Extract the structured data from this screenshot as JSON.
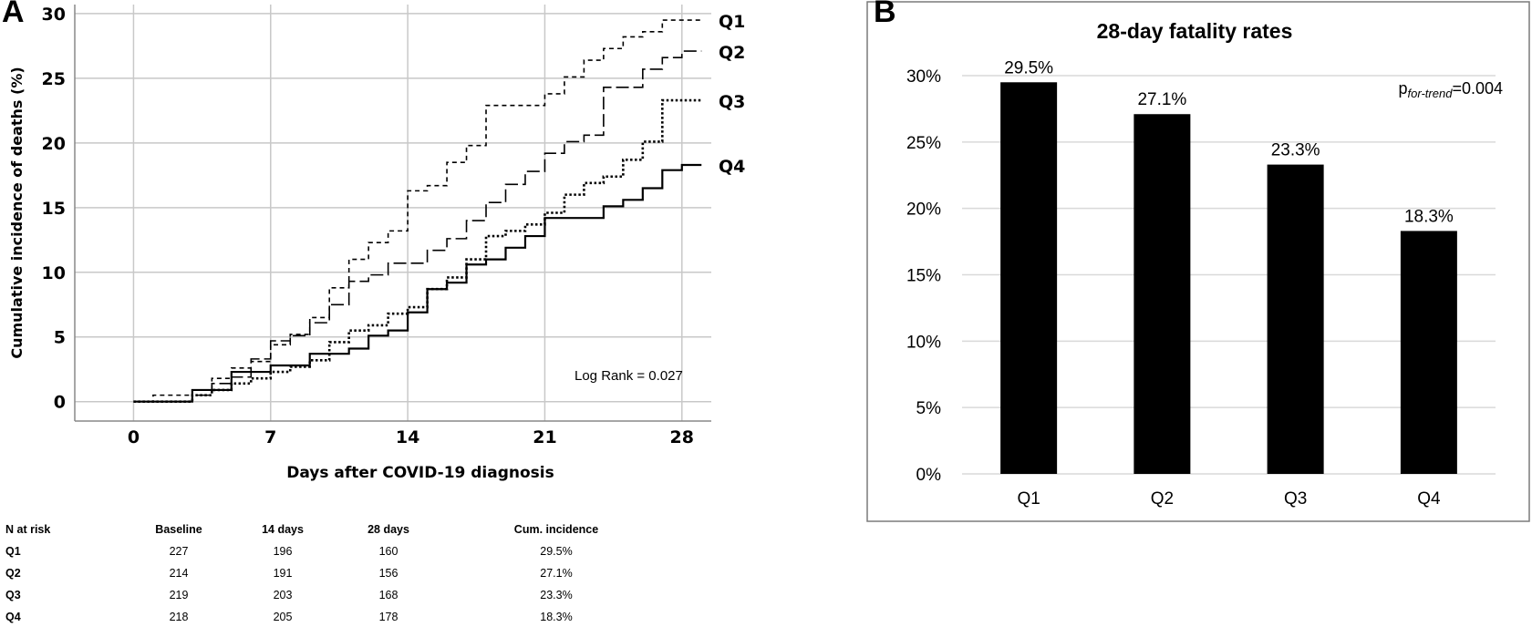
{
  "panels": {
    "a": {
      "letter": "A"
    },
    "b": {
      "letter": "B"
    }
  },
  "chart_data": [
    {
      "type": "line",
      "step": true,
      "xlabel": "Days after COVID-19 diagnosis",
      "ylabel": "Cumulative incidence of deaths (%)",
      "xlim": [
        -3,
        29.5
      ],
      "ylim": [
        -1.5,
        30.7
      ],
      "xticks": [
        0,
        7,
        14,
        21,
        28
      ],
      "yticks": [
        0,
        5,
        10,
        15,
        20,
        25,
        30
      ],
      "grid": true,
      "annotation": "Log Rank = 0.027",
      "series": [
        {
          "name": "Q1",
          "dash": "short-dash",
          "x": [
            0,
            1,
            3,
            4,
            5,
            6,
            7,
            8,
            9,
            10,
            11,
            12,
            13,
            14,
            15,
            16,
            17,
            18,
            19,
            20,
            21,
            22,
            23,
            24,
            25,
            26,
            27,
            28,
            29
          ],
          "y": [
            0,
            0.5,
            0.9,
            1.8,
            2.6,
            3.1,
            4.4,
            5.2,
            6.5,
            8.8,
            11.0,
            12.3,
            13.2,
            16.3,
            16.7,
            18.5,
            19.8,
            22.9,
            22.9,
            22.9,
            23.8,
            25.1,
            26.4,
            27.3,
            28.2,
            28.6,
            29.5,
            29.5,
            29.5
          ]
        },
        {
          "name": "Q2",
          "dash": "long-dash",
          "x": [
            0,
            3,
            4,
            5,
            6,
            7,
            8,
            9,
            10,
            11,
            12,
            13,
            14,
            15,
            16,
            17,
            18,
            19,
            20,
            21,
            22,
            23,
            24,
            25,
            26,
            27,
            28,
            29
          ],
          "y": [
            0,
            0.5,
            1.4,
            1.9,
            3.3,
            4.7,
            5.1,
            6.1,
            7.5,
            9.3,
            9.8,
            10.7,
            10.7,
            11.7,
            12.6,
            14.0,
            15.4,
            16.8,
            17.8,
            19.2,
            20.1,
            20.6,
            24.3,
            24.3,
            25.7,
            26.6,
            27.1,
            27.1
          ]
        },
        {
          "name": "Q3",
          "dash": "dotted",
          "x": [
            0,
            3,
            4,
            5,
            6,
            7,
            8,
            9,
            10,
            11,
            12,
            13,
            14,
            15,
            16,
            17,
            18,
            19,
            20,
            21,
            22,
            23,
            24,
            25,
            26,
            27,
            28,
            29
          ],
          "y": [
            0,
            0.5,
            0.9,
            1.4,
            1.8,
            2.3,
            2.7,
            3.2,
            4.6,
            5.5,
            5.9,
            6.8,
            7.3,
            8.7,
            9.6,
            11.0,
            12.8,
            13.2,
            13.7,
            14.6,
            16.0,
            16.9,
            17.4,
            18.7,
            20.1,
            23.3,
            23.3,
            23.3
          ]
        },
        {
          "name": "Q4",
          "dash": "solid",
          "x": [
            0,
            3,
            4,
            5,
            6,
            7,
            8,
            9,
            10,
            11,
            12,
            13,
            14,
            15,
            16,
            17,
            18,
            19,
            20,
            21,
            22,
            23,
            24,
            25,
            26,
            27,
            28,
            29
          ],
          "y": [
            0,
            0.9,
            0.9,
            2.3,
            2.3,
            2.8,
            2.8,
            3.7,
            3.7,
            4.1,
            5.1,
            5.5,
            6.9,
            8.7,
            9.2,
            10.6,
            11.0,
            11.9,
            12.8,
            14.2,
            14.2,
            14.2,
            15.1,
            15.6,
            16.5,
            17.9,
            18.3,
            18.3
          ]
        }
      ]
    },
    {
      "type": "bar",
      "title": "28-day fatality rates",
      "categories": [
        "Q1",
        "Q2",
        "Q3",
        "Q4"
      ],
      "values": [
        29.5,
        27.1,
        23.3,
        18.3
      ],
      "value_labels": [
        "29.5%",
        "27.1%",
        "23.3%",
        "18.3%"
      ],
      "ylim": [
        0,
        30
      ],
      "yticks": [
        0,
        5,
        10,
        15,
        20,
        25,
        30
      ],
      "ytick_labels": [
        "0%",
        "5%",
        "10%",
        "15%",
        "20%",
        "25%",
        "30%"
      ],
      "grid": true,
      "bar_color": "#000000",
      "annotation": {
        "prefix": "p",
        "subscript": "for-trend",
        "suffix": "=0.004"
      }
    }
  ],
  "risk_table": {
    "headers": [
      "N at risk",
      "Baseline",
      "14 days",
      "28 days",
      "Cum. incidence"
    ],
    "rows": [
      {
        "group": "Q1",
        "baseline": "227",
        "d14": "196",
        "d28": "160",
        "cum": "29.5%"
      },
      {
        "group": "Q2",
        "baseline": "214",
        "d14": "191",
        "d28": "156",
        "cum": "27.1%"
      },
      {
        "group": "Q3",
        "baseline": "219",
        "d14": "203",
        "d28": "168",
        "cum": "23.3%"
      },
      {
        "group": "Q4",
        "baseline": "218",
        "d14": "205",
        "d28": "178",
        "cum": "18.3%"
      }
    ]
  }
}
